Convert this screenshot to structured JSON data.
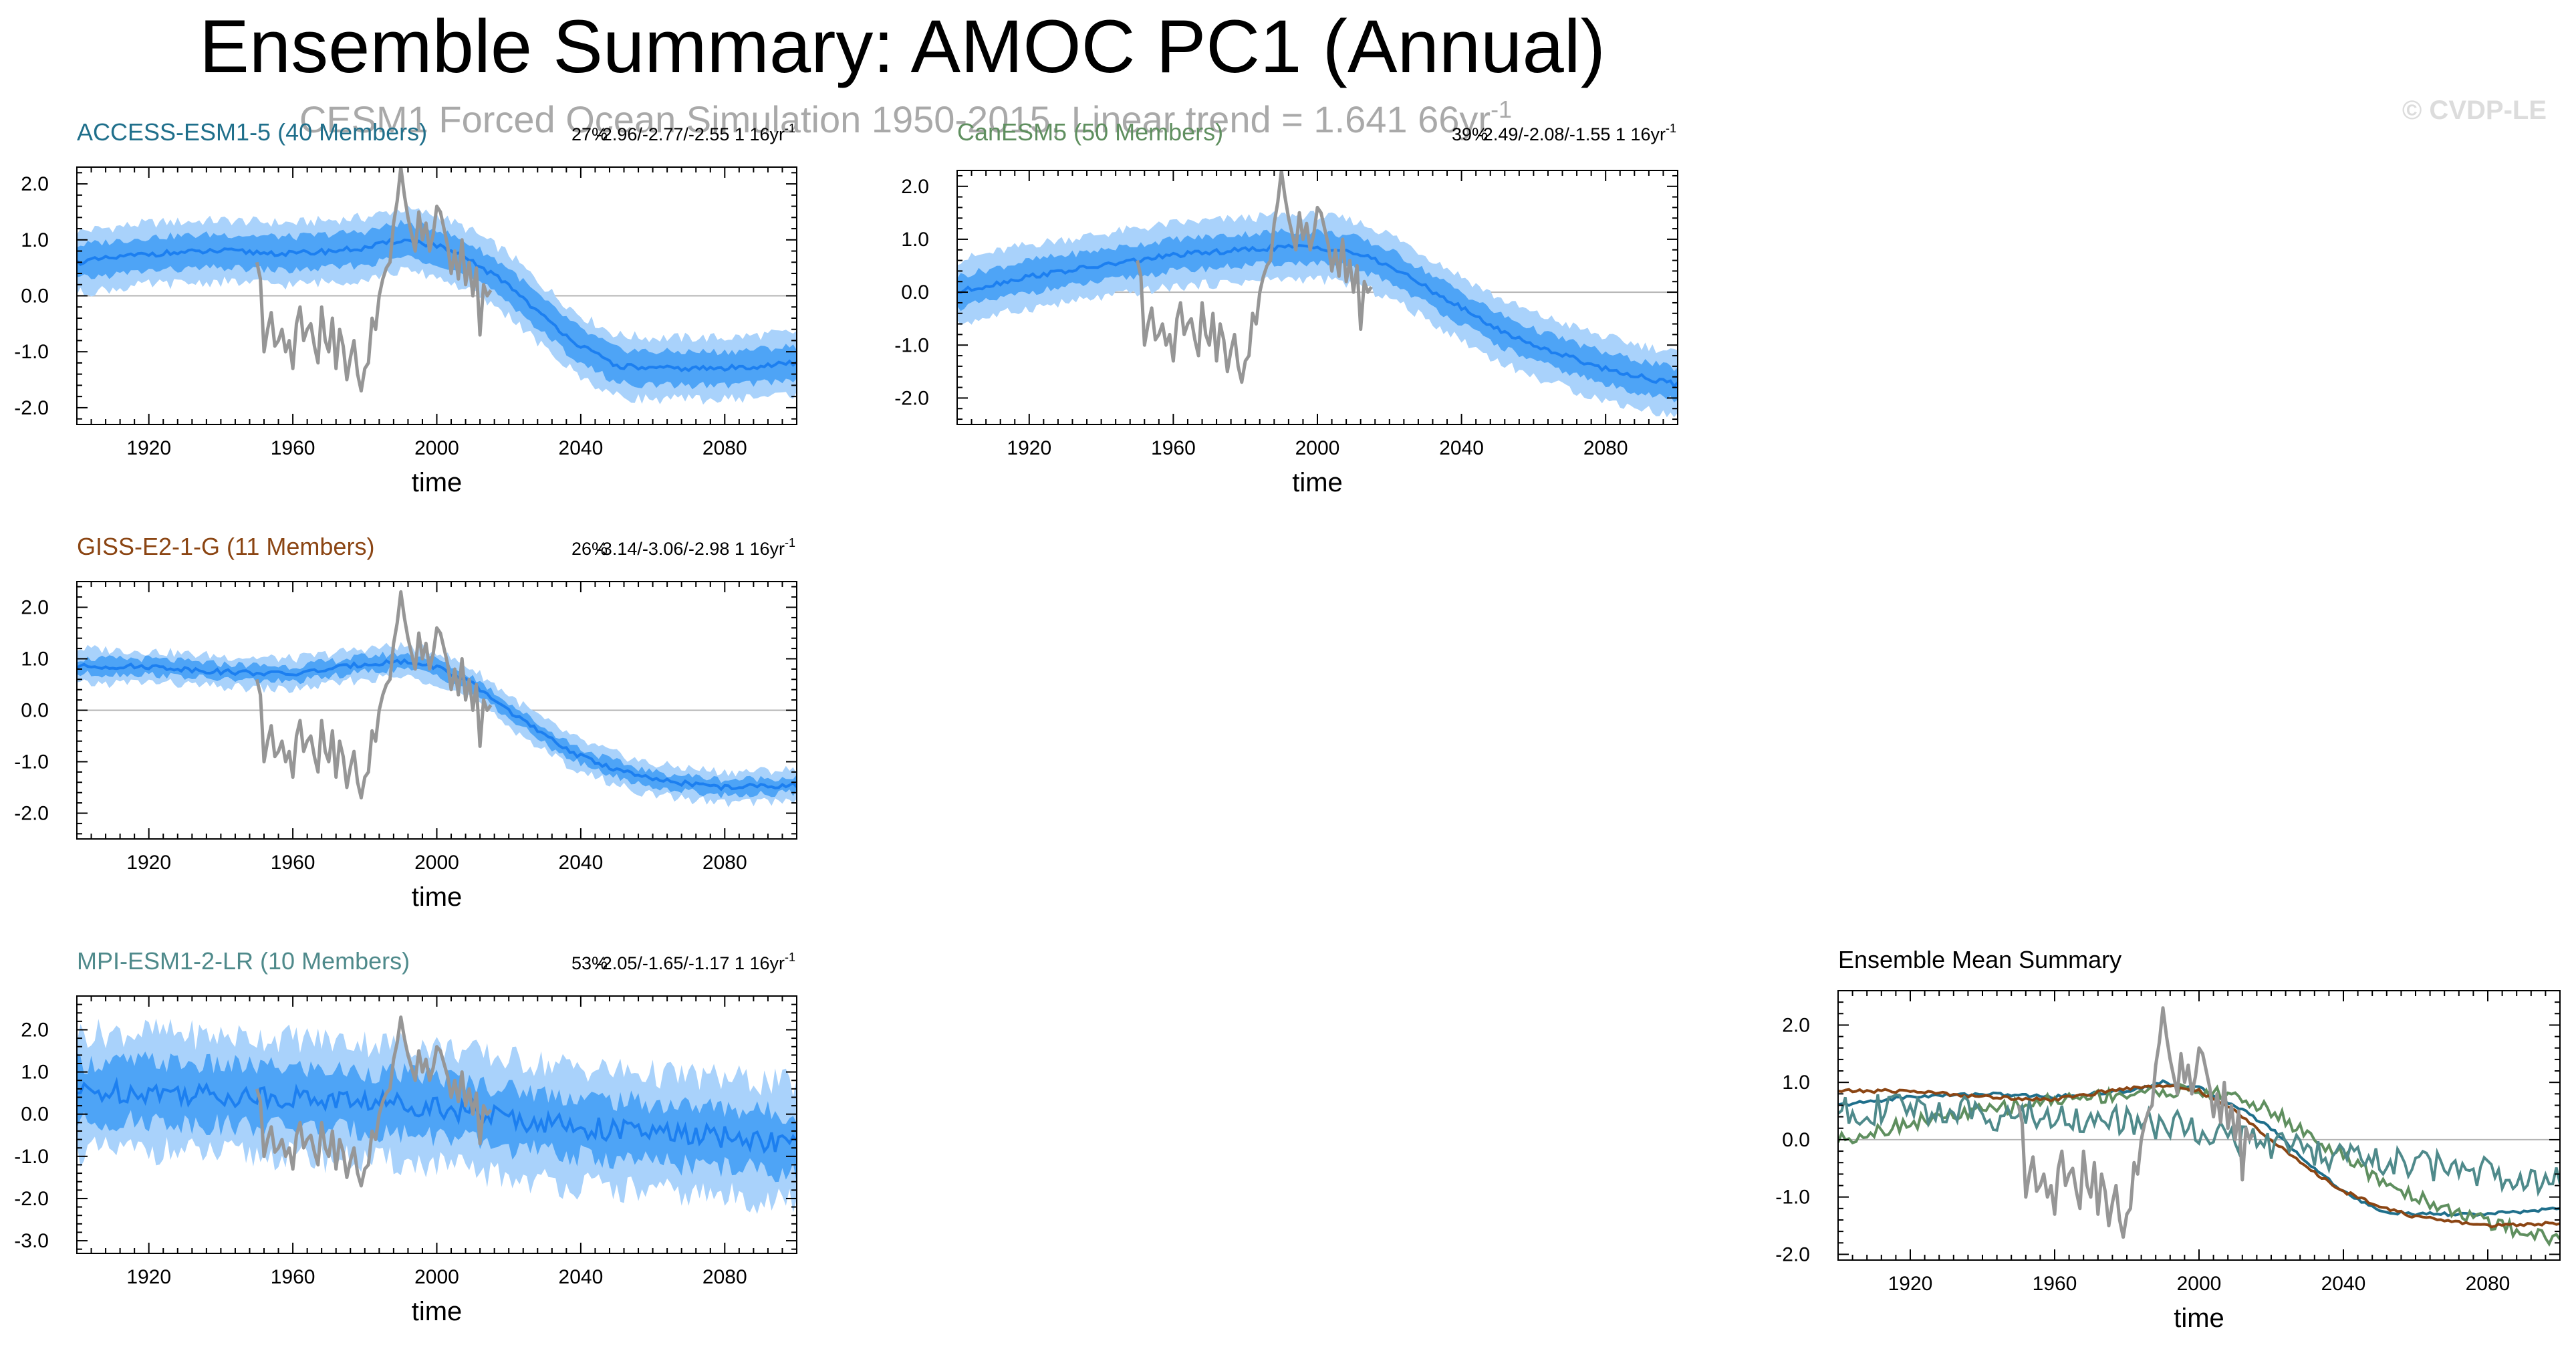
{
  "figure": {
    "title": "Ensemble Summary: AMOC PC1 (Annual)",
    "subtitle": "CESM1 Forced Ocean Simulation 1950-2015, Linear trend = 1.641 66yr",
    "subtitle_sup": "-1",
    "watermark": "© CVDP-LE"
  },
  "colors": {
    "band_outer": "#a9d2fb",
    "band_inner": "#4ea4f6",
    "mean_line": "#1c7ff0",
    "obs_line": "#969696",
    "zero_line": "#b4b4b4",
    "access": "#1f6f8b",
    "canesm": "#5f8f5f",
    "giss": "#8b4513",
    "mpi": "#4f8a8b"
  },
  "chart_data": [
    {
      "type": "line",
      "panel": "access",
      "title": "ACCESS-ESM1-5 (40 Members)",
      "stats_pct": "27%",
      "stats_trend": "-2.96/-2.77/-2.55 1 16yr",
      "stats_sup": "-1",
      "xlabel": "time",
      "xlim": [
        1900,
        2100
      ],
      "ylim": [
        -2.3,
        2.3
      ],
      "xticks": [
        "1920",
        "1960",
        "2000",
        "2040",
        "2080"
      ],
      "yticks": [
        "2.0",
        "1.0",
        "0.0",
        "-1.0",
        "-2.0"
      ],
      "series": [
        {
          "name": "ensemble mean",
          "x": [
            1900,
            1920,
            1940,
            1960,
            1980,
            1990,
            2000,
            2010,
            2020,
            2030,
            2040,
            2050,
            2060,
            2080,
            2100
          ],
          "values": [
            0.6,
            0.75,
            0.8,
            0.75,
            0.85,
            1.0,
            0.9,
            0.6,
            0.2,
            -0.4,
            -0.9,
            -1.25,
            -1.3,
            -1.3,
            -1.2
          ]
        },
        {
          "name": "inner spread",
          "lower": [
            0.3,
            0.45,
            0.5,
            0.45,
            0.55,
            0.7,
            0.6,
            0.3,
            -0.1,
            -0.7,
            -1.2,
            -1.55,
            -1.6,
            -1.6,
            -1.5
          ],
          "upper": [
            0.9,
            1.05,
            1.1,
            1.05,
            1.15,
            1.3,
            1.2,
            0.9,
            0.5,
            -0.1,
            -0.6,
            -0.95,
            -1.0,
            -1.0,
            -0.9
          ]
        },
        {
          "name": "outer spread",
          "lower": [
            0.05,
            0.2,
            0.25,
            0.2,
            0.3,
            0.45,
            0.35,
            0.05,
            -0.35,
            -0.95,
            -1.45,
            -1.8,
            -1.85,
            -1.85,
            -1.75
          ],
          "upper": [
            1.15,
            1.3,
            1.35,
            1.3,
            1.4,
            1.55,
            1.45,
            1.15,
            0.75,
            0.15,
            -0.35,
            -0.7,
            -0.75,
            -0.75,
            -0.65
          ]
        }
      ]
    },
    {
      "type": "line",
      "panel": "canesm",
      "title": "CanESM5 (50 Members)",
      "stats_pct": "39%",
      "stats_trend": "-2.49/-2.08/-1.55 1 16yr",
      "stats_sup": "-1",
      "xlabel": "time",
      "xlim": [
        1900,
        2100
      ],
      "ylim": [
        -2.5,
        2.3
      ],
      "xticks": [
        "1920",
        "1960",
        "2000",
        "2040",
        "2080"
      ],
      "yticks": [
        "2.0",
        "1.0",
        "0.0",
        "-1.0",
        "-2.0"
      ],
      "series": [
        {
          "name": "ensemble mean",
          "x": [
            1900,
            1920,
            1940,
            1960,
            1980,
            1990,
            2000,
            2010,
            2020,
            2030,
            2040,
            2050,
            2060,
            2080,
            2100
          ],
          "values": [
            0.0,
            0.3,
            0.5,
            0.7,
            0.8,
            0.85,
            0.85,
            0.75,
            0.5,
            0.1,
            -0.3,
            -0.7,
            -1.0,
            -1.45,
            -1.75
          ]
        },
        {
          "name": "inner spread",
          "lower": [
            -0.3,
            0.0,
            0.2,
            0.4,
            0.5,
            0.55,
            0.55,
            0.45,
            0.2,
            -0.2,
            -0.6,
            -1.0,
            -1.3,
            -1.75,
            -2.05
          ],
          "upper": [
            0.3,
            0.6,
            0.8,
            1.0,
            1.1,
            1.15,
            1.15,
            1.05,
            0.8,
            0.4,
            0.0,
            -0.4,
            -0.7,
            -1.15,
            -1.45
          ]
        },
        {
          "name": "outer spread",
          "lower": [
            -0.6,
            -0.3,
            -0.1,
            0.1,
            0.2,
            0.25,
            0.25,
            0.15,
            -0.1,
            -0.5,
            -0.9,
            -1.3,
            -1.6,
            -2.05,
            -2.35
          ],
          "upper": [
            0.6,
            0.9,
            1.1,
            1.3,
            1.4,
            1.45,
            1.45,
            1.35,
            1.1,
            0.7,
            0.3,
            -0.1,
            -0.4,
            -0.85,
            -1.15
          ]
        }
      ]
    },
    {
      "type": "line",
      "panel": "giss",
      "title": "GISS-E2-1-G (11 Members)",
      "stats_pct": "26%",
      "stats_trend": "-3.14/-3.06/-2.98 1 16yr",
      "stats_sup": "-1",
      "xlabel": "time",
      "xlim": [
        1900,
        2100
      ],
      "ylim": [
        -2.5,
        2.5
      ],
      "xticks": [
        "1920",
        "1960",
        "2000",
        "2040",
        "2080"
      ],
      "yticks": [
        "2.0",
        "1.0",
        "0.0",
        "-1.0",
        "-2.0"
      ],
      "series": [
        {
          "name": "ensemble mean",
          "x": [
            1900,
            1920,
            1940,
            1960,
            1980,
            1990,
            2000,
            2010,
            2020,
            2030,
            2040,
            2050,
            2060,
            2080,
            2100
          ],
          "values": [
            0.85,
            0.85,
            0.75,
            0.7,
            0.9,
            0.95,
            0.85,
            0.5,
            0.0,
            -0.5,
            -0.9,
            -1.15,
            -1.35,
            -1.5,
            -1.45
          ]
        },
        {
          "name": "inner spread",
          "lower": [
            0.7,
            0.7,
            0.6,
            0.55,
            0.75,
            0.8,
            0.7,
            0.35,
            -0.15,
            -0.65,
            -1.05,
            -1.3,
            -1.5,
            -1.65,
            -1.6
          ],
          "upper": [
            1.0,
            1.0,
            0.9,
            0.85,
            1.05,
            1.1,
            1.0,
            0.65,
            0.15,
            -0.35,
            -0.75,
            -1.0,
            -1.2,
            -1.35,
            -1.3
          ]
        },
        {
          "name": "outer spread",
          "lower": [
            0.5,
            0.55,
            0.45,
            0.4,
            0.6,
            0.65,
            0.55,
            0.2,
            -0.3,
            -0.8,
            -1.2,
            -1.45,
            -1.65,
            -1.8,
            -1.75
          ],
          "upper": [
            1.2,
            1.15,
            1.05,
            1.0,
            1.2,
            1.25,
            1.15,
            0.8,
            0.3,
            -0.2,
            -0.6,
            -0.85,
            -1.05,
            -1.2,
            -1.15
          ]
        }
      ]
    },
    {
      "type": "line",
      "panel": "mpi",
      "title": "MPI-ESM1-2-LR (10 Members)",
      "stats_pct": "53%",
      "stats_trend": "-2.05/-1.65/-1.17 1 16yr",
      "stats_sup": "-1",
      "xlabel": "time",
      "xlim": [
        1900,
        2100
      ],
      "ylim": [
        -3.3,
        2.8
      ],
      "xticks": [
        "1920",
        "1960",
        "2000",
        "2040",
        "2080"
      ],
      "yticks": [
        "2.0",
        "1.0",
        "0.0",
        "-1.0",
        "-2.0",
        "-3.0"
      ],
      "series": [
        {
          "name": "ensemble mean",
          "x": [
            1900,
            1920,
            1940,
            1960,
            1980,
            2000,
            2020,
            2040,
            2060,
            2080,
            2100
          ],
          "values": [
            0.5,
            0.55,
            0.45,
            0.4,
            0.3,
            0.2,
            -0.1,
            -0.3,
            -0.45,
            -0.55,
            -0.7
          ]
        },
        {
          "name": "inner spread",
          "lower": [
            -0.2,
            -0.15,
            -0.25,
            -0.3,
            -0.4,
            -0.5,
            -0.8,
            -1.0,
            -1.15,
            -1.25,
            -1.4
          ],
          "upper": [
            1.2,
            1.25,
            1.15,
            1.1,
            1.0,
            0.9,
            0.6,
            0.4,
            0.25,
            0.15,
            0.0
          ]
        },
        {
          "name": "outer spread",
          "lower": [
            -0.9,
            -0.85,
            -0.95,
            -1.0,
            -1.1,
            -1.2,
            -1.5,
            -1.7,
            -1.85,
            -1.95,
            -2.1
          ],
          "upper": [
            1.9,
            1.95,
            1.85,
            1.8,
            1.7,
            1.6,
            1.3,
            1.1,
            0.95,
            0.85,
            0.7
          ]
        }
      ]
    },
    {
      "type": "line",
      "panel": "summary",
      "title": "Ensemble Mean Summary",
      "xlabel": "time",
      "xlim": [
        1900,
        2100
      ],
      "ylim": [
        -2.1,
        2.6
      ],
      "xticks": [
        "1920",
        "1960",
        "2000",
        "2040",
        "2080"
      ],
      "yticks": [
        "2.0",
        "1.0",
        "0.0",
        "-1.0",
        "-2.0"
      ],
      "series": [
        {
          "name": "ACCESS-ESM1-5",
          "x": [
            1900,
            1920,
            1940,
            1960,
            1980,
            1990,
            2000,
            2010,
            2020,
            2030,
            2040,
            2050,
            2060,
            2080,
            2100
          ],
          "values": [
            0.6,
            0.75,
            0.8,
            0.75,
            0.85,
            1.0,
            0.9,
            0.6,
            0.2,
            -0.4,
            -0.9,
            -1.25,
            -1.3,
            -1.3,
            -1.2
          ]
        },
        {
          "name": "CanESM5",
          "x": [
            1900,
            1920,
            1940,
            1960,
            1980,
            1990,
            2000,
            2010,
            2020,
            2030,
            2040,
            2050,
            2060,
            2080,
            2100
          ],
          "values": [
            0.0,
            0.3,
            0.5,
            0.7,
            0.8,
            0.85,
            0.85,
            0.75,
            0.5,
            0.1,
            -0.3,
            -0.7,
            -1.0,
            -1.45,
            -1.75
          ]
        },
        {
          "name": "GISS-E2-1-G",
          "x": [
            1900,
            1920,
            1940,
            1960,
            1980,
            1990,
            2000,
            2010,
            2020,
            2030,
            2040,
            2050,
            2060,
            2080,
            2100
          ],
          "values": [
            0.85,
            0.85,
            0.75,
            0.7,
            0.9,
            0.95,
            0.85,
            0.5,
            0.0,
            -0.5,
            -0.9,
            -1.15,
            -1.35,
            -1.5,
            -1.45
          ]
        },
        {
          "name": "MPI-ESM1-2-LR",
          "x": [
            1900,
            1920,
            1940,
            1960,
            1980,
            2000,
            2020,
            2040,
            2060,
            2080,
            2100
          ],
          "values": [
            0.5,
            0.55,
            0.45,
            0.4,
            0.3,
            0.2,
            -0.1,
            -0.3,
            -0.45,
            -0.55,
            -0.7
          ]
        }
      ]
    }
  ],
  "observations": {
    "name": "CESM1 Forced Ocean Simulation",
    "x": [
      1950,
      1951,
      1952,
      1953,
      1954,
      1955,
      1956,
      1957,
      1958,
      1959,
      1960,
      1961,
      1962,
      1963,
      1964,
      1965,
      1966,
      1967,
      1968,
      1969,
      1970,
      1971,
      1972,
      1973,
      1974,
      1975,
      1976,
      1977,
      1978,
      1979,
      1980,
      1981,
      1982,
      1983,
      1984,
      1985,
      1986,
      1987,
      1988,
      1989,
      1990,
      1991,
      1992,
      1993,
      1994,
      1995,
      1996,
      1997,
      1998,
      1999,
      2000,
      2001,
      2002,
      2003,
      2004,
      2005,
      2006,
      2007,
      2008,
      2009,
      2010,
      2011,
      2012,
      2013,
      2014,
      2015
    ],
    "values": [
      0.6,
      0.3,
      -1.0,
      -0.6,
      -0.3,
      -0.9,
      -0.8,
      -0.6,
      -1.0,
      -0.8,
      -1.3,
      -0.5,
      -0.2,
      -0.8,
      -0.6,
      -0.5,
      -0.9,
      -1.2,
      -0.2,
      -0.8,
      -1.0,
      -0.4,
      -1.3,
      -0.6,
      -0.9,
      -1.5,
      -1.1,
      -0.8,
      -1.4,
      -1.7,
      -1.3,
      -1.2,
      -0.4,
      -0.6,
      0.0,
      0.3,
      0.5,
      0.6,
      1.3,
      1.7,
      2.3,
      1.8,
      1.4,
      1.1,
      0.8,
      1.5,
      1.0,
      1.3,
      0.8,
      1.1,
      1.6,
      1.5,
      1.2,
      0.9,
      0.4,
      0.8,
      0.3,
      1.0,
      0.2,
      0.6,
      0.0,
      0.5,
      -0.7,
      0.2,
      0.0,
      0.1
    ]
  }
}
